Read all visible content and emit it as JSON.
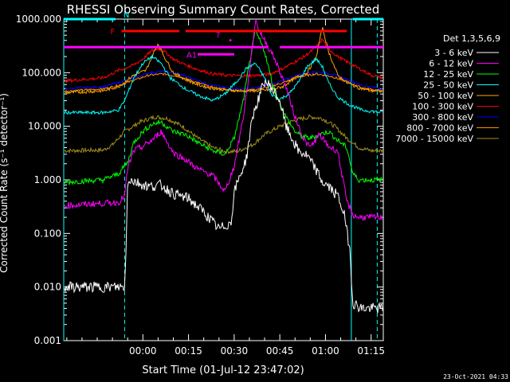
{
  "chart_data": {
    "type": "line",
    "title": "RHESSI Observing Summary Count Rates, Corrected",
    "xlabel": "Start Time (01-Jul-12 23:47:02)",
    "ylabel": "Corrected Count Rate (s⁻¹ detector⁻¹)",
    "x_scale": "time",
    "x_range_minutes": [
      -13,
      92
    ],
    "x_tick_values_minutes": [
      13,
      28,
      43,
      58,
      73,
      88
    ],
    "x_tick_labels": [
      "00:00",
      "00:15",
      "00:30",
      "00:45",
      "01:00",
      "01:15"
    ],
    "y_scale": "log",
    "ylim": [
      0.001,
      1000
    ],
    "y_tick_values": [
      0.001,
      0.01,
      0.1,
      1,
      10,
      100,
      1000
    ],
    "y_tick_labels": [
      "0.001",
      "0.010",
      "0.100",
      "1.000",
      "10.000",
      "100.000",
      "1000.000"
    ],
    "grid": false,
    "legend_position": "right",
    "legend_title": "Det 1,3,5,6,9",
    "background_color": "#000000",
    "axes_color": "#ffffff",
    "series": [
      {
        "name": "3 - 6 keV",
        "color": "#ffffff",
        "x": [
          -13,
          7,
          7.5,
          8,
          10,
          12,
          15,
          19,
          23,
          28,
          33,
          38,
          42,
          43,
          47,
          49,
          53,
          55,
          58,
          60,
          64,
          67,
          70,
          72,
          74,
          77,
          79,
          81,
          82,
          85,
          88,
          92
        ],
        "y": [
          0.01,
          0.01,
          0.05,
          1.05,
          0.95,
          0.85,
          0.75,
          0.8,
          0.55,
          0.45,
          0.25,
          0.12,
          0.16,
          0.6,
          2.5,
          15,
          70,
          55,
          30,
          10,
          3.5,
          2.8,
          1.5,
          0.9,
          0.75,
          0.5,
          0.25,
          0.05,
          0.005,
          0.004,
          0.004,
          0.004
        ]
      },
      {
        "name": "6 - 12 keV",
        "color": "#ff00ff",
        "x": [
          -13,
          5,
          7,
          8,
          10,
          13,
          16,
          19,
          23,
          27,
          31,
          36,
          40,
          43,
          46,
          48,
          50,
          52,
          56,
          60,
          63,
          66,
          68,
          71,
          74,
          77,
          80,
          82,
          84,
          92
        ],
        "y": [
          0.33,
          0.38,
          0.5,
          1.6,
          3.5,
          4.2,
          5.5,
          8,
          3.2,
          2.4,
          1.6,
          1.2,
          0.6,
          1.8,
          15,
          100,
          950,
          500,
          200,
          55,
          15,
          5.5,
          4,
          7,
          4.2,
          3.5,
          0.4,
          0.22,
          0.2,
          0.2
        ]
      },
      {
        "name": "12 - 25 keV",
        "color": "#00ff00",
        "x": [
          -13,
          0,
          5,
          7,
          8,
          10,
          13,
          16,
          19,
          23,
          27,
          31,
          36,
          40,
          43,
          46,
          48,
          50,
          53,
          56,
          60,
          63,
          65,
          68,
          71,
          74,
          77,
          80,
          82,
          84,
          92
        ],
        "y": [
          0.9,
          1.0,
          1.3,
          1.8,
          2.1,
          5,
          8,
          11,
          12,
          8,
          7,
          5,
          3.5,
          3,
          6,
          30,
          150,
          600,
          250,
          50,
          15,
          8,
          6.5,
          6,
          7,
          8,
          5.5,
          4,
          1.3,
          1.0,
          1.0
        ]
      },
      {
        "name": "25 - 50 keV",
        "color": "#00ffff",
        "x": [
          -13,
          0,
          5,
          7,
          10,
          13,
          16,
          19,
          22,
          27,
          31,
          36,
          40,
          44,
          47,
          50,
          53,
          55,
          58,
          61,
          64,
          67,
          70,
          72,
          74,
          77,
          81,
          85,
          92
        ],
        "y": [
          18,
          18,
          20,
          30,
          80,
          150,
          200,
          150,
          80,
          50,
          38,
          30,
          40,
          70,
          120,
          150,
          80,
          40,
          32,
          40,
          65,
          130,
          180,
          130,
          65,
          35,
          25,
          20,
          18
        ]
      },
      {
        "name": "50 - 100 keV",
        "color": "#ffa500",
        "x": [
          -13,
          0,
          5,
          10,
          14,
          16,
          18,
          20,
          23,
          27,
          31,
          35,
          40,
          45,
          50,
          55,
          59,
          63,
          67,
          70,
          72,
          74,
          77,
          80,
          84,
          88,
          92
        ],
        "y": [
          42,
          46,
          55,
          90,
          110,
          200,
          350,
          200,
          100,
          75,
          60,
          52,
          48,
          46,
          46,
          48,
          55,
          80,
          100,
          200,
          700,
          250,
          90,
          65,
          52,
          46,
          45
        ]
      },
      {
        "name": "100 - 300 keV",
        "color": "#ff0000",
        "x": [
          -13,
          0,
          5,
          10,
          13,
          16,
          18,
          20,
          23,
          27,
          32,
          36,
          40,
          44,
          48,
          52,
          55,
          59,
          63,
          66,
          70,
          72,
          74,
          77,
          80,
          84,
          88,
          92
        ],
        "y": [
          70,
          80,
          110,
          140,
          180,
          260,
          280,
          250,
          180,
          140,
          110,
          95,
          90,
          88,
          88,
          90,
          95,
          120,
          160,
          200,
          300,
          420,
          280,
          200,
          160,
          120,
          90,
          80
        ]
      },
      {
        "name": "300 - 800 keV",
        "color": "#0000ff",
        "x": [
          -13,
          0,
          5,
          10,
          15,
          20,
          25,
          30,
          35,
          40,
          45,
          50,
          55,
          60,
          65,
          70,
          75,
          80,
          85,
          92
        ],
        "y": [
          50,
          55,
          65,
          80,
          100,
          105,
          95,
          75,
          60,
          52,
          50,
          52,
          60,
          75,
          95,
          105,
          95,
          75,
          58,
          50
        ]
      },
      {
        "name": "800 - 7000 keV",
        "color": "#ff8c00",
        "x": [
          -13,
          0,
          5,
          10,
          15,
          20,
          25,
          30,
          35,
          40,
          45,
          50,
          55,
          60,
          65,
          70,
          75,
          80,
          85,
          92
        ],
        "y": [
          45,
          50,
          58,
          72,
          90,
          95,
          85,
          68,
          55,
          48,
          46,
          48,
          55,
          68,
          85,
          95,
          85,
          68,
          52,
          45
        ]
      },
      {
        "name": "7000 - 15000 keV",
        "color": "#a0901e",
        "x": [
          -13,
          0,
          3,
          7,
          12,
          17,
          21,
          26,
          31,
          36,
          40,
          44,
          49,
          53,
          58,
          63,
          68,
          72,
          76,
          80,
          84,
          88,
          92
        ],
        "y": [
          3.5,
          3.6,
          4.5,
          8,
          12,
          15,
          14,
          10,
          6,
          4,
          3.4,
          3.4,
          4.5,
          7,
          10,
          13,
          15,
          14,
          10,
          6,
          4,
          3.5,
          3.5
        ]
      }
    ],
    "vertical_lines": [
      {
        "x": -13,
        "style": "solid",
        "color": "#00ffff"
      },
      {
        "x": 7,
        "style": "dashed",
        "color": "#00ffff"
      },
      {
        "x": 81.5,
        "style": "solid",
        "color": "#00ffff"
      },
      {
        "x": 90,
        "style": "dashed",
        "color": "#00ffff"
      }
    ],
    "flag_bars": [
      {
        "label": "N",
        "color": "#00ffff",
        "y": 1000,
        "segments": [
          [
            -13,
            4
          ],
          [
            82,
            92
          ]
        ]
      },
      {
        "label": "F",
        "color": "#ff0000",
        "y": 600,
        "segments": [
          [
            6,
            25
          ],
          [
            27,
            80
          ]
        ]
      },
      {
        "label": "",
        "color": "#ff00ff",
        "y": 300,
        "segments": [
          [
            -13,
            54
          ],
          [
            58,
            92
          ]
        ]
      },
      {
        "label": "A1",
        "color": "#ff00ff",
        "y": 220,
        "segments": [
          [
            31,
            43
          ]
        ]
      }
    ],
    "flag_labels": [
      {
        "text": "?",
        "color": "#ff00ff",
        "x": 37,
        "y": 450
      },
      {
        "text": "•",
        "color": "#ff00ff",
        "x": 41,
        "y": 360
      }
    ]
  },
  "timestamp": "23-Oct-2021 04:33"
}
